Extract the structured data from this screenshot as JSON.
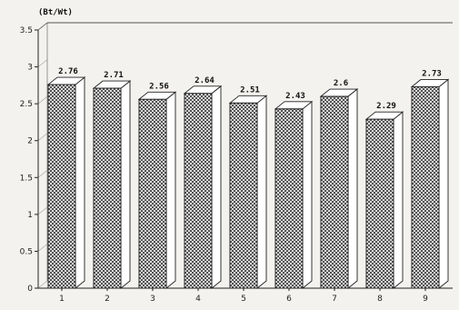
{
  "chart_data": {
    "type": "bar",
    "unit_label": "(Bt/Wt)",
    "categories": [
      "1",
      "2",
      "3",
      "4",
      "5",
      "6",
      "7",
      "8",
      "9"
    ],
    "values": [
      2.76,
      2.71,
      2.56,
      2.64,
      2.51,
      2.43,
      2.6,
      2.29,
      2.73
    ],
    "value_labels": [
      "2.76",
      "2.71",
      "2.56",
      "2.64",
      "2.51",
      "2.43",
      "2.6",
      "2.29",
      "2.73"
    ],
    "ylim": [
      0,
      3.5
    ],
    "yticks": [
      "0",
      "0.5",
      "1",
      "1.5",
      "2",
      "2.5",
      "3",
      "3.5"
    ],
    "bar_style": "3d-crosshatch",
    "colors": {
      "bar_face": "#ffffff",
      "hatch": "#333333",
      "outline": "#222222",
      "background": "#f4f2ee"
    }
  }
}
